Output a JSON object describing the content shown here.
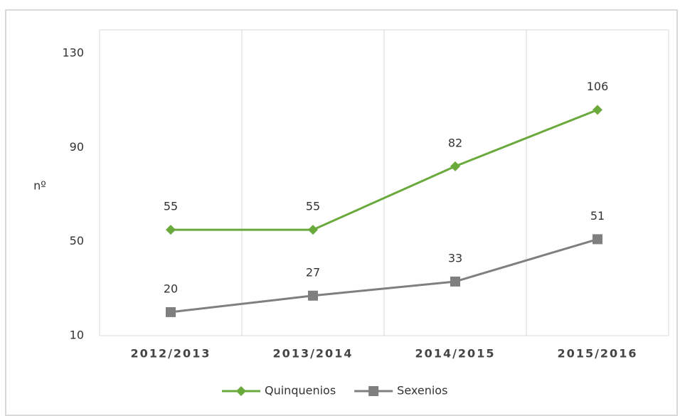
{
  "chart_data": {
    "type": "line",
    "y_label": "nº",
    "categories": [
      "2012/2013",
      "2013/2014",
      "2014/2015",
      "2015/2016"
    ],
    "series": [
      {
        "name": "Quinquenios",
        "color": "#6aaa3c",
        "marker": "diamond",
        "values": [
          55,
          55,
          82,
          106
        ]
      },
      {
        "name": "Sexenios",
        "color": "#7f7f7f",
        "marker": "square",
        "values": [
          20,
          27,
          33,
          51
        ]
      }
    ],
    "ylim": [
      10,
      140
    ],
    "yticks": [
      10,
      50,
      90,
      130
    ],
    "grid": "vertical",
    "legend": "bottom"
  }
}
